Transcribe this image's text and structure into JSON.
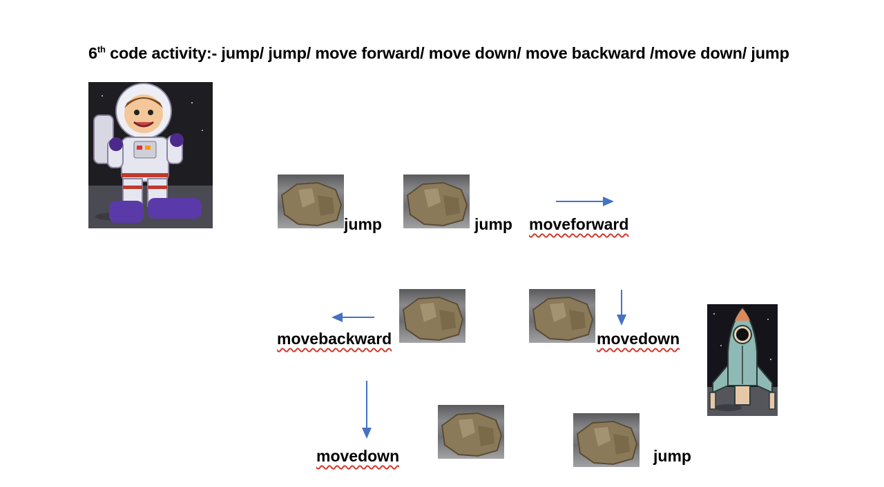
{
  "title": {
    "prefix": "6",
    "superscript": "th",
    "text": " code activity:- jump/ jump/ move forward/ move down/ move backward /move down/ jump"
  },
  "steps": {
    "jump_1": "jump",
    "jump_2": "jump",
    "move_forward": "moveforward",
    "move_down_1": "movedown",
    "move_backward": "movebackward",
    "move_down_2": "movedown",
    "jump_3": "jump"
  },
  "colors": {
    "arrow": "#4472c4",
    "spell_underline": "#d33a2c"
  },
  "icons": {
    "character": "astronaut-icon",
    "obstacle": "rock-icon",
    "goal": "rocket-icon"
  }
}
